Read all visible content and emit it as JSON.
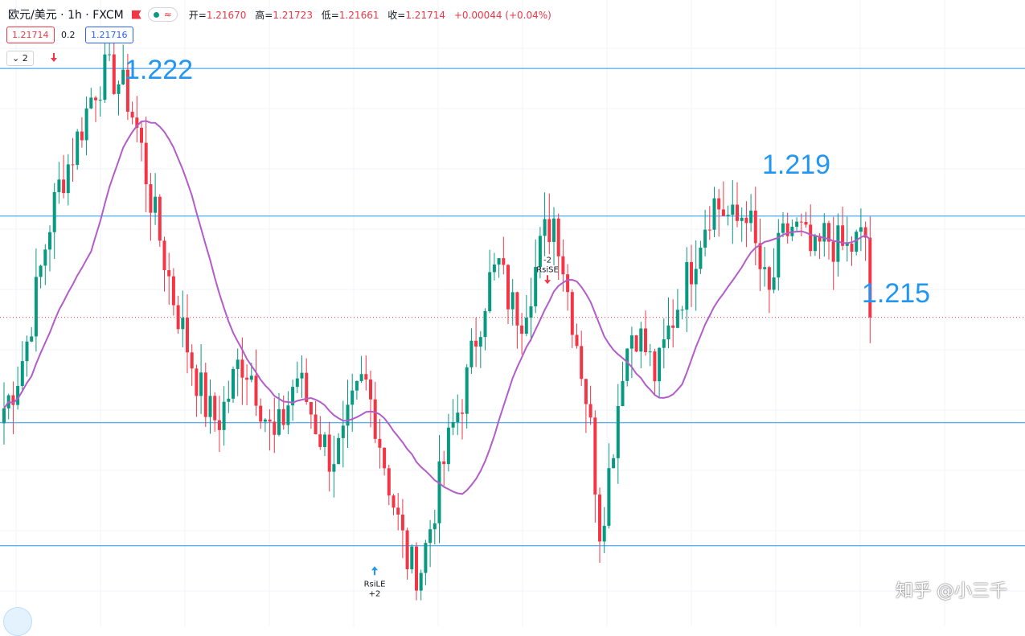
{
  "header": {
    "symbol": "欧元/美元 · 1h · FXCM",
    "wave_icon": "≈",
    "open_label": "开=",
    "open": "1.21670",
    "high_label": "高=",
    "high": "1.21723",
    "low_label": "低=",
    "low": "1.21661",
    "close_label": "收=",
    "close": "1.21714",
    "change": "+0.00044 (+0.04%)"
  },
  "trade": {
    "sell_price": "1.21714",
    "spread": "0.2",
    "buy_price": "1.21716"
  },
  "indicator_count": "2",
  "levels": [
    {
      "label": "1.222",
      "price": 1.222
    },
    {
      "label": "1.219",
      "price": 1.219
    },
    {
      "label": "1.215",
      "price": 1.215
    }
  ],
  "signals": [
    {
      "text1": "-2",
      "text2": "RsiSE"
    },
    {
      "text1": "RsiLE",
      "text2": "+2"
    }
  ],
  "watermark": "知乎 @小三千",
  "colors": {
    "up": "#089981",
    "down": "#f23645",
    "ma": "#b25dc9",
    "level": "#2196f3",
    "current": "#f23645"
  },
  "icons": {
    "flag": "red-flag-icon",
    "dot": "green-dot-icon",
    "chevron": "chevron-down-icon",
    "logo": "tradingview-logo-icon"
  },
  "chart_data": {
    "type": "candlestick",
    "title": "欧元/美元 · 1h · FXCM",
    "x_axis": "hourly bars (no tick labels visible)",
    "price_range": [
      1.2115,
      1.2231
    ],
    "current_price": 1.21714,
    "horizontal_levels": [
      1.2222,
      1.2192,
      1.215,
      1.2125
    ],
    "moving_average": "purple smoothed line",
    "signals": [
      {
        "label": "-2 RsiSE",
        "direction": "sell",
        "approx_price": 1.2179
      },
      {
        "label": "RsiLE +2",
        "direction": "buy",
        "approx_price": 1.2121
      }
    ],
    "close_path": [
      1.2153,
      1.2158,
      1.2166,
      1.2178,
      1.219,
      1.2199,
      1.2204,
      1.2211,
      1.2218,
      1.2221,
      1.222,
      1.2216,
      1.2208,
      1.2196,
      1.2186,
      1.2176,
      1.2168,
      1.216,
      1.2153,
      1.215,
      1.2156,
      1.2163,
      1.216,
      1.2153,
      1.2146,
      1.2152,
      1.216,
      1.2154,
      1.2148,
      1.2143,
      1.2145,
      1.2153,
      1.2159,
      1.2151,
      1.214,
      1.213,
      1.2121,
      1.212,
      1.213,
      1.2141,
      1.215,
      1.2157,
      1.2168,
      1.2178,
      1.2182,
      1.2174,
      1.2172,
      1.2179,
      1.2188,
      1.2192,
      1.2178,
      1.2166,
      1.2152,
      1.2128,
      1.2143,
      1.2162,
      1.217,
      1.2165,
      1.2159,
      1.2168,
      1.2175,
      1.2181,
      1.2189,
      1.2195,
      1.2193,
      1.219,
      1.2194,
      1.2183,
      1.2175,
      1.2186,
      1.219,
      1.2188,
      1.2183,
      1.2188,
      1.2186,
      1.2185,
      1.2187,
      1.2188
    ],
    "up_color": "#089981",
    "down_color": "#f23645",
    "grid": false
  }
}
